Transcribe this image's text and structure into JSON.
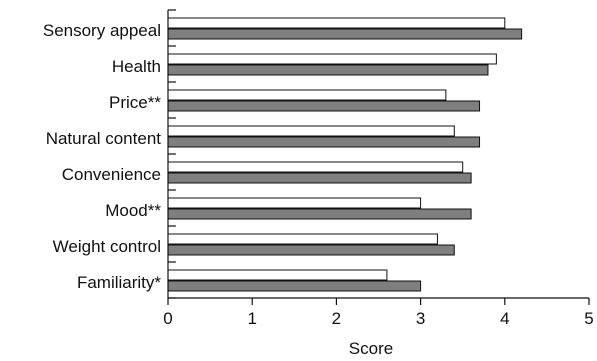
{
  "chart_data": {
    "type": "bar",
    "orientation": "horizontal",
    "title": "",
    "xlabel": "Score",
    "ylabel": "",
    "xlim": [
      0,
      5
    ],
    "xticks": [
      "0",
      "1",
      "2",
      "3",
      "4",
      "5"
    ],
    "grid": false,
    "legend": "none",
    "categories": [
      "Sensory appeal",
      "Health",
      "Price**",
      "Natural content",
      "Convenience",
      "Mood**",
      "Weight control",
      "Familiarity*"
    ],
    "series": [
      {
        "fill": "#ffffff",
        "stroke": "#111111",
        "values": [
          4.0,
          3.9,
          3.3,
          3.4,
          3.5,
          3.0,
          3.2,
          2.6
        ]
      },
      {
        "fill": "#7f7f7f",
        "stroke": "#111111",
        "values": [
          4.2,
          3.8,
          3.7,
          3.7,
          3.6,
          3.6,
          3.4,
          3.0
        ]
      }
    ]
  }
}
